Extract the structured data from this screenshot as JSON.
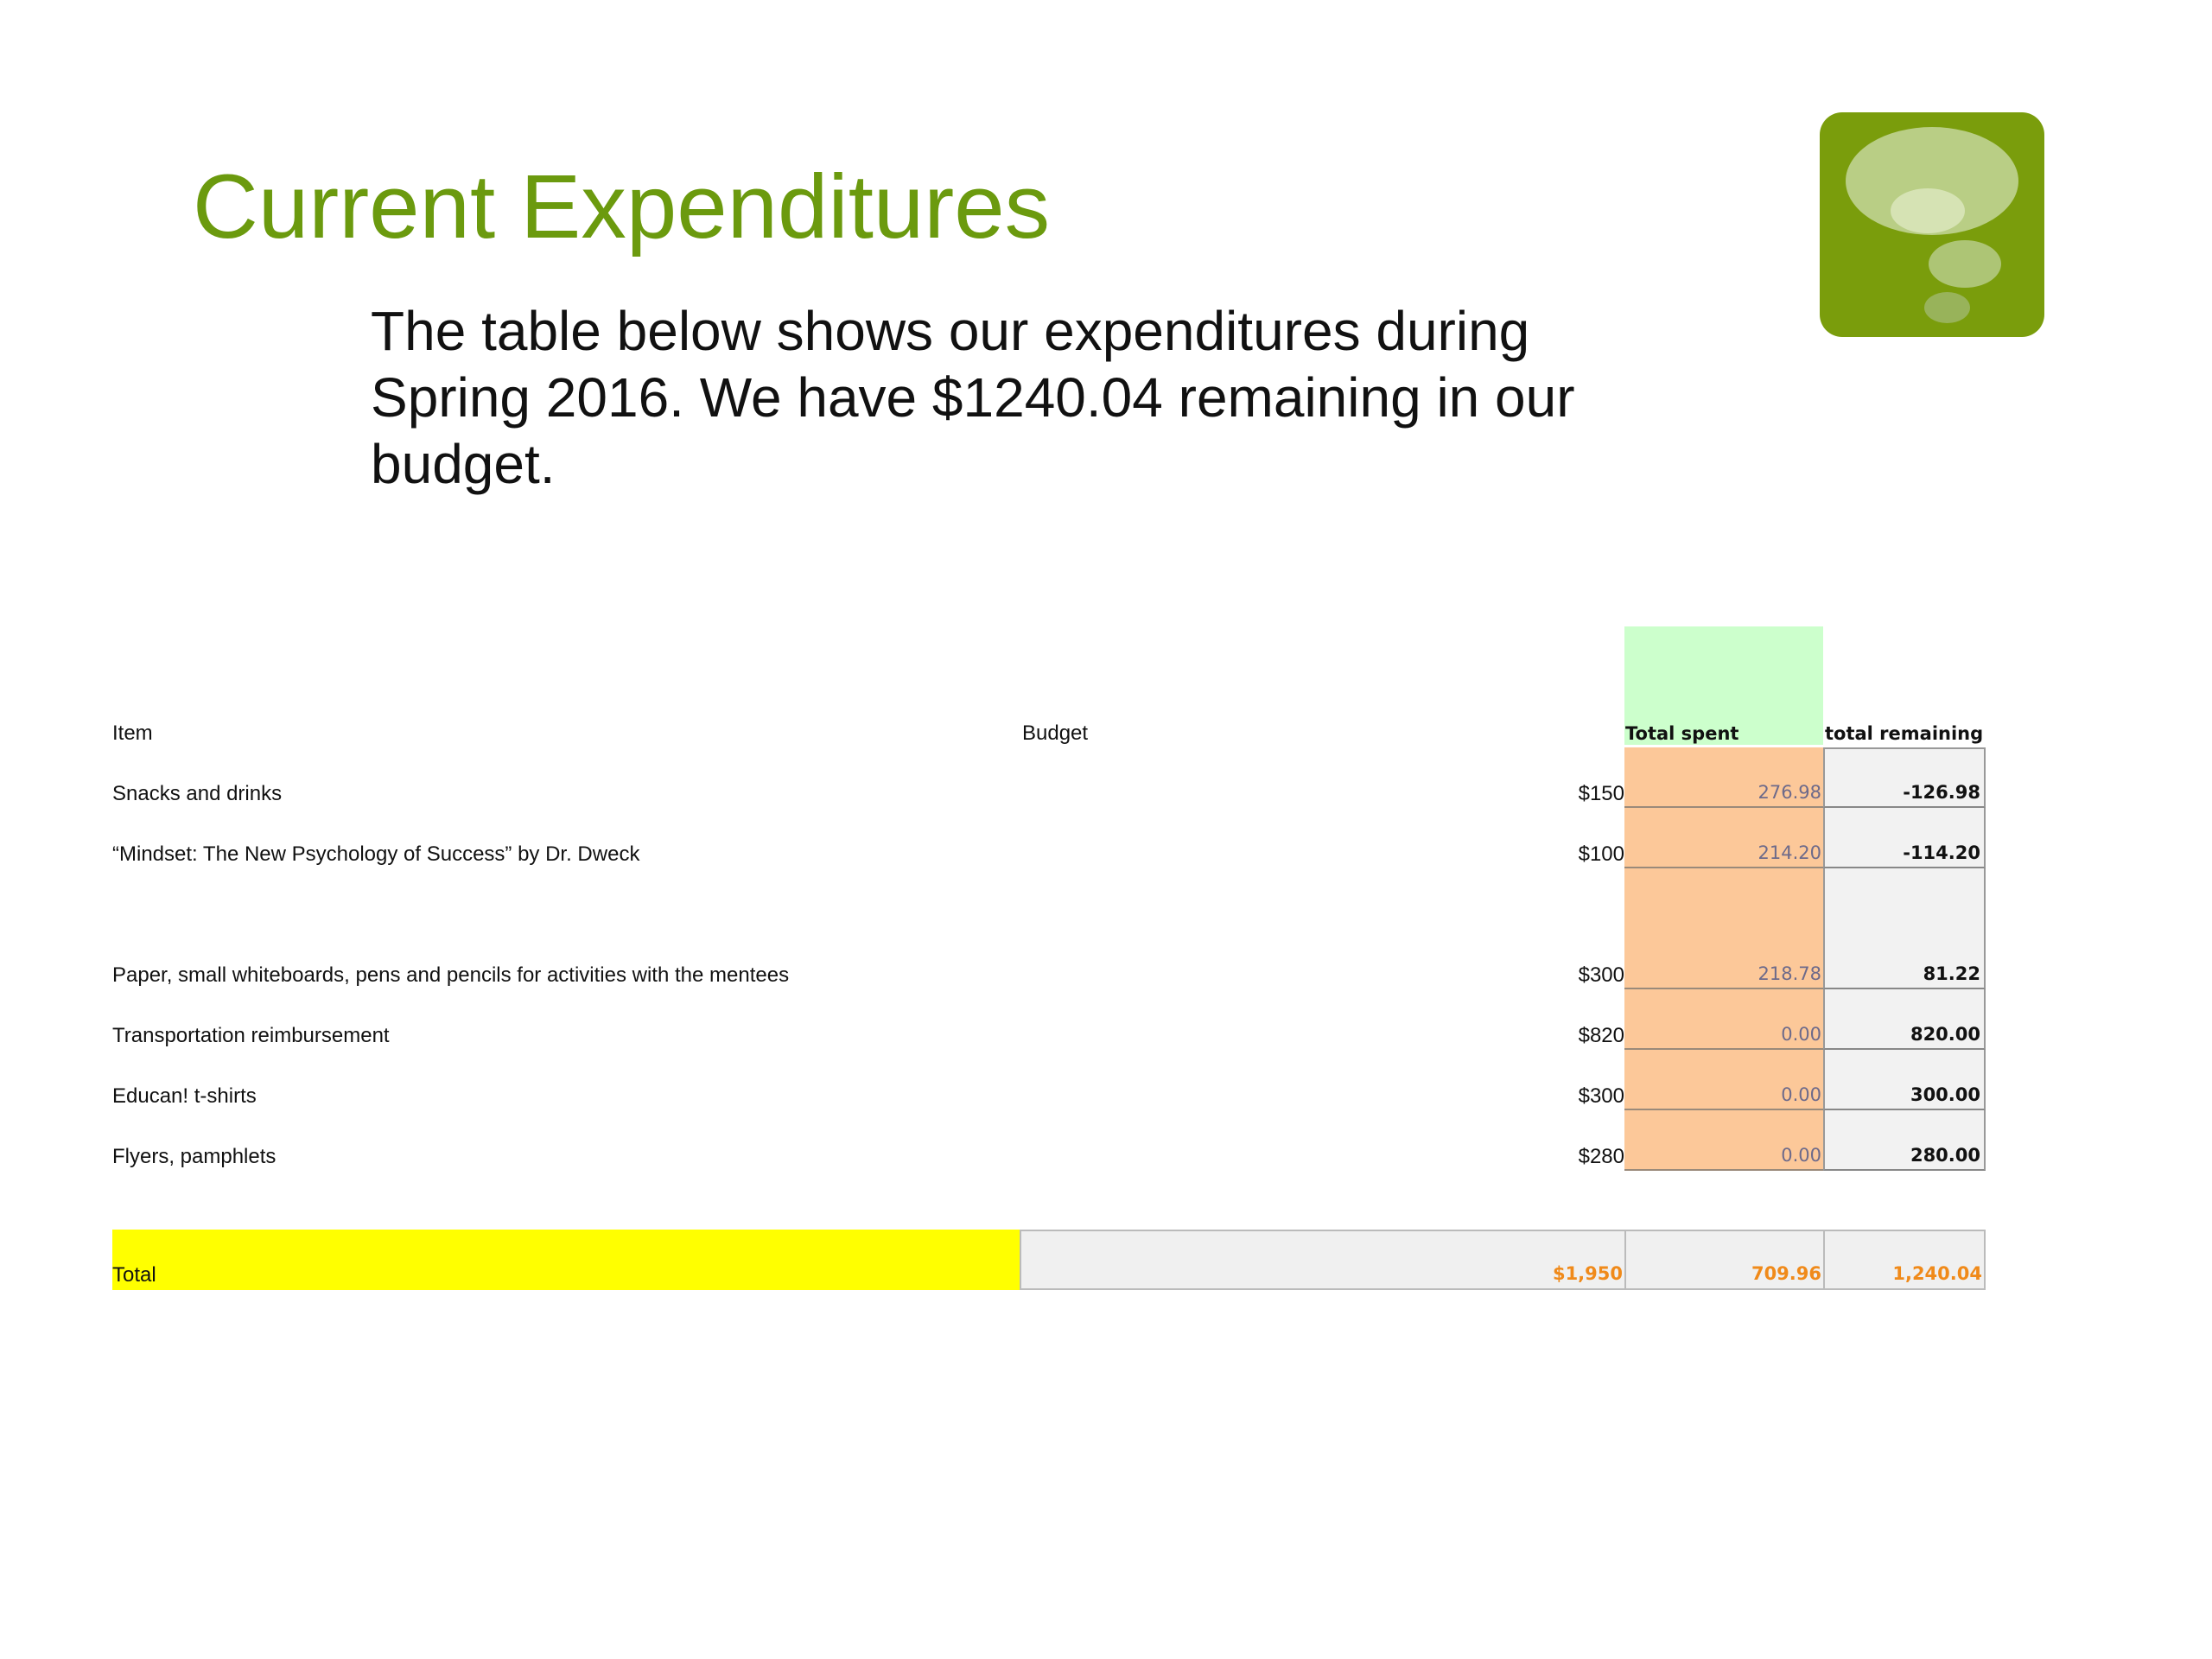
{
  "slide": {
    "title": "Current Expenditures",
    "subtitle": "The table below shows our expenditures during Spring 2016. We have $1240.04 remaining in our budget.",
    "logo_icon": "thought-bubble-icon",
    "accent_color": "#6b9a0e"
  },
  "table": {
    "headers": {
      "item": "Item",
      "budget": "Budget",
      "spent": "Total spent",
      "remaining": "total remaining"
    },
    "rows": [
      {
        "item": "Snacks and drinks",
        "budget": "$150",
        "spent": "276.98",
        "remaining": "-126.98"
      },
      {
        "item": "“Mindset: The New Psychology of Success” by Dr. Dweck",
        "budget": "$100",
        "spent": "214.20",
        "remaining": "-114.20"
      },
      {
        "item": "Paper, small whiteboards, pens and pencils for activities with the mentees",
        "budget": "$300",
        "spent": "218.78",
        "remaining": "81.22"
      },
      {
        "item": "Transportation reimbursement",
        "budget": "$820",
        "spent": "0.00",
        "remaining": "820.00"
      },
      {
        "item": "Educan! t-shirts",
        "budget": "$300",
        "spent": "0.00",
        "remaining": "300.00"
      },
      {
        "item": "Flyers, pamphlets",
        "budget": "$280",
        "spent": "0.00",
        "remaining": "280.00"
      }
    ],
    "total": {
      "label": "Total",
      "budget": "$1,950",
      "spent": "709.96",
      "remaining": "1,240.04"
    },
    "colors": {
      "spent_fill": "#fcc899",
      "remaining_fill": "#f2f2f2",
      "header_highlight": "#ccffcc",
      "total_highlight": "#ffff00",
      "total_text": "#f08a1a"
    }
  }
}
